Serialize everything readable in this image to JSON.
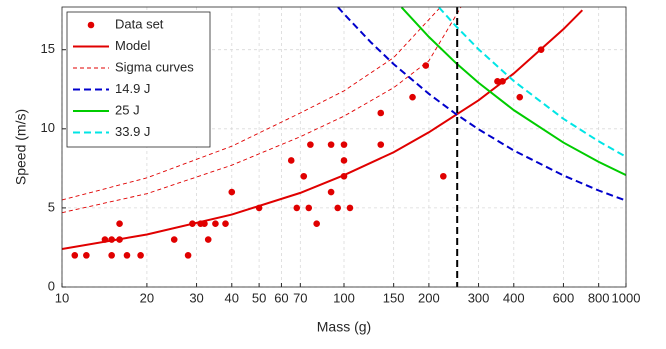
{
  "chart_data": {
    "type": "line",
    "xlabel": "Mass (g)",
    "ylabel": "Speed (m/s)",
    "log_x": true,
    "grid": true,
    "legend": "top-left",
    "xlim": [
      10,
      1000
    ],
    "ylim": [
      0,
      17.7
    ],
    "xticks": [
      10,
      20,
      30,
      40,
      50,
      60,
      70,
      100,
      150,
      200,
      300,
      400,
      600,
      800,
      1000
    ],
    "yticks": [
      0,
      5,
      10,
      15
    ],
    "vline_x": 252,
    "vline_color": "#000000",
    "series": [
      {
        "name": "Data set",
        "color": "#e00000",
        "style": "markers",
        "lines": [
          {
            "x": [
              11.1,
              12.2,
              14.2,
              15,
              16,
              15,
              16,
              17,
              19,
              25,
              28,
              29,
              31,
              32,
              33,
              35,
              38,
              40,
              50,
              65,
              68,
              72,
              75,
              76,
              80,
              90,
              90,
              95,
              100,
              100,
              100,
              105,
              135,
              135,
              175,
              195,
              225,
              350,
              365,
              420,
              500
            ],
            "values": [
              2,
              2,
              3,
              3,
              3,
              2,
              4,
              2,
              2,
              3,
              2,
              4,
              4,
              4,
              3,
              4,
              4,
              6,
              5,
              8,
              5,
              7,
              5,
              9,
              4,
              9,
              6,
              5,
              9,
              8,
              7,
              5,
              11,
              9,
              12,
              14,
              7,
              13,
              13,
              12,
              15
            ]
          }
        ]
      },
      {
        "name": "Model",
        "color": "#e00000",
        "style": "solid",
        "lines": [
          {
            "x": [
              10,
              20,
              40,
              70,
              100,
              150,
              200,
              300,
              400,
              600,
              700
            ],
            "values": [
              2.4,
              3.32,
              4.58,
              5.95,
              7.07,
              8.52,
              9.78,
              11.8,
              13.5,
              16.3,
              17.5
            ]
          }
        ]
      },
      {
        "name": "Sigma curves",
        "color": "#e00000",
        "style": "thin-dashed",
        "lines": [
          {
            "x": [
              10,
              20,
              40,
              70,
              100,
              150,
              200,
              260
            ],
            "values": [
              4.7,
              5.9,
              7.7,
              9.5,
              10.8,
              12.6,
              14.3,
              17.7
            ]
          },
          {
            "x": [
              10,
              20,
              40,
              70,
              100,
              150,
              220
            ],
            "values": [
              5.5,
              6.9,
              8.9,
              11,
              12.4,
              14.5,
              17.7
            ]
          }
        ]
      },
      {
        "name": "14.9 J",
        "color": "#0000cc",
        "style": "dashed",
        "lines": [
          {
            "x": [
              95.2,
              100,
              125,
              150,
              200,
              250,
              300,
              400,
              600,
              800,
              1000
            ],
            "values": [
              17.69,
              17.26,
              15.44,
              14.09,
              12.21,
              10.92,
              9.97,
              8.63,
              7.05,
              6.1,
              5.46
            ]
          }
        ]
      },
      {
        "name": "25 J",
        "color": "#00cc00",
        "style": "solid",
        "lines": [
          {
            "x": [
              160,
              200,
              250,
              300,
              400,
              600,
              800,
              1000
            ],
            "values": [
              17.68,
              15.81,
              14.14,
              12.91,
              11.18,
              9.13,
              7.91,
              7.07
            ]
          }
        ]
      },
      {
        "name": "33.9 J",
        "color": "#00e5e5",
        "style": "dashed",
        "lines": [
          {
            "x": [
              217,
              250,
              300,
              400,
              600,
              800,
              1000
            ],
            "values": [
              17.68,
              16.47,
              15.03,
              13.02,
              10.63,
              9.21,
              8.23
            ]
          }
        ]
      }
    ]
  }
}
